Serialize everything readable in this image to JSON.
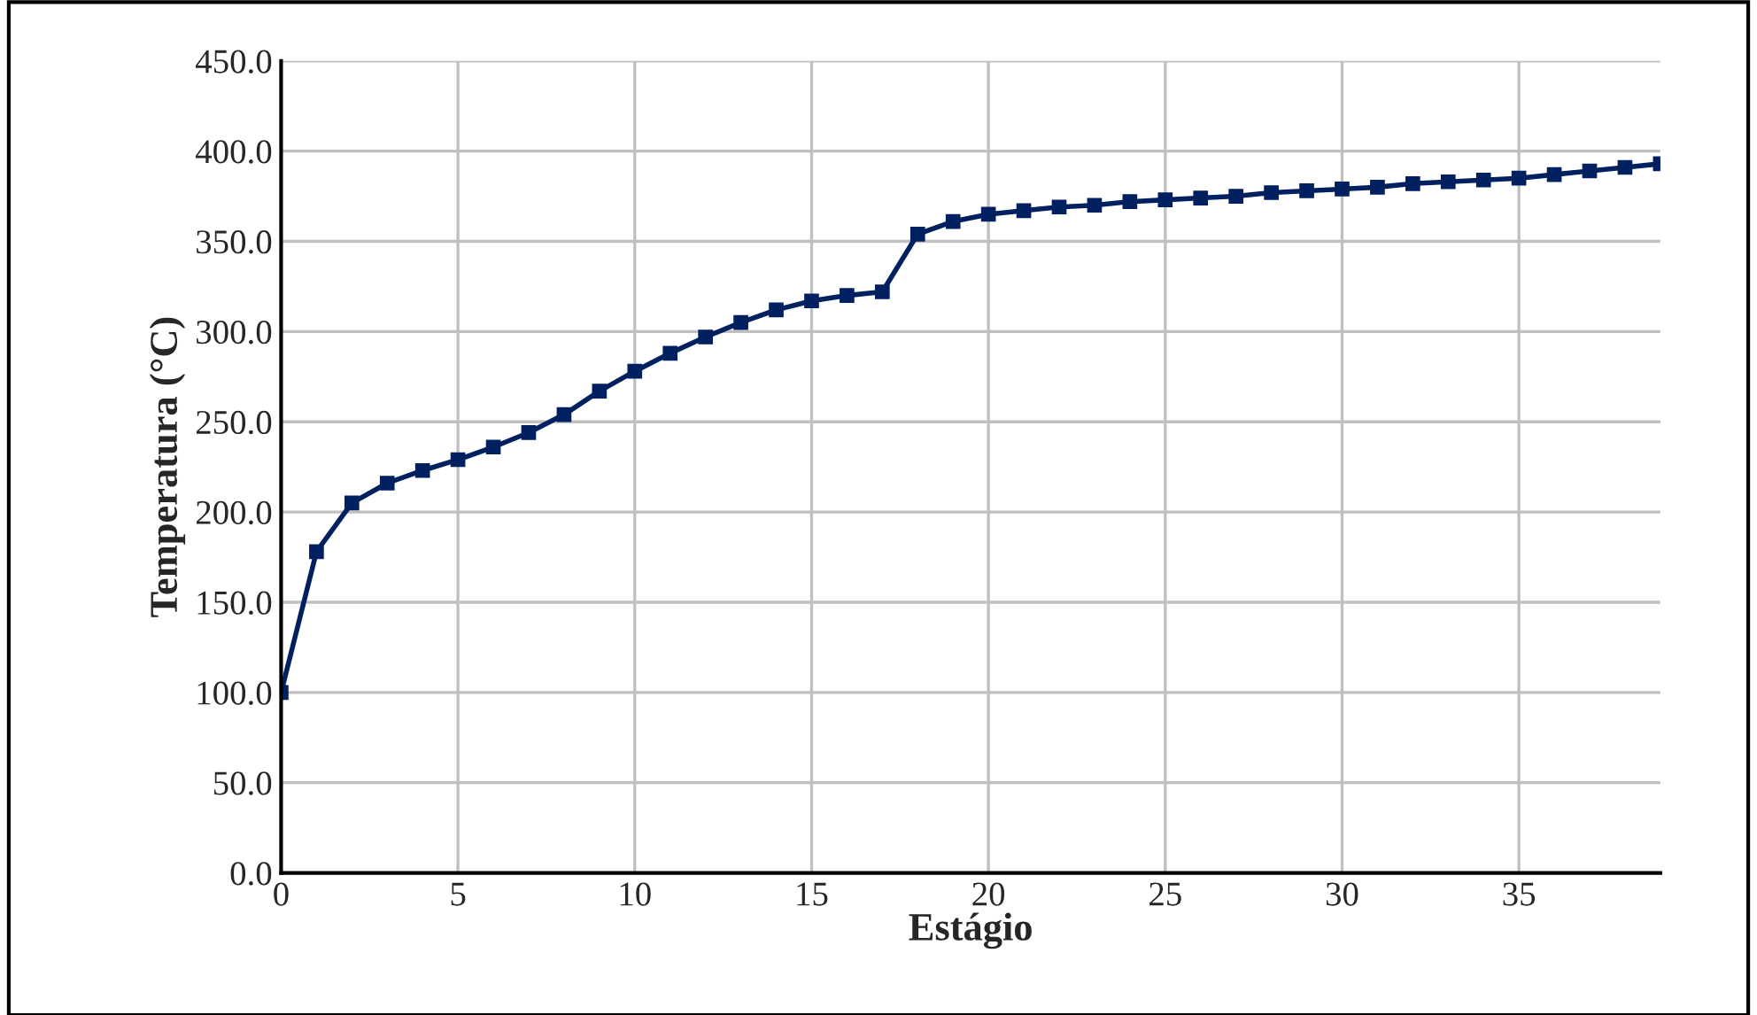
{
  "chart_data": {
    "type": "line",
    "xlabel": "Estágio",
    "ylabel": "Temperatura (°C)",
    "x": [
      0,
      1,
      2,
      3,
      4,
      5,
      6,
      7,
      8,
      9,
      10,
      11,
      12,
      13,
      14,
      15,
      16,
      17,
      18,
      19,
      20,
      21,
      22,
      23,
      24,
      25,
      26,
      27,
      28,
      29,
      30,
      31,
      32,
      33,
      34,
      35,
      36,
      37,
      38,
      39
    ],
    "series": [
      {
        "color": "#002060",
        "values": [
          100,
          178,
          205,
          216,
          223,
          229,
          236,
          244,
          254,
          267,
          278,
          288,
          297,
          305,
          312,
          317,
          320,
          322,
          354,
          361,
          365,
          367,
          369,
          370,
          372,
          373,
          374,
          375,
          377,
          378,
          379,
          380,
          382,
          383,
          384,
          385,
          387,
          389,
          391,
          393
        ]
      }
    ],
    "xlim": [
      0,
      39
    ],
    "xticks": [
      0,
      5,
      10,
      15,
      20,
      25,
      30,
      35
    ],
    "ylim": [
      0,
      450
    ],
    "yticks": [
      {
        "value": 0,
        "label": "0.0"
      },
      {
        "value": 50,
        "label": "50.0"
      },
      {
        "value": 100,
        "label": "100.0"
      },
      {
        "value": 150,
        "label": "150.0"
      },
      {
        "value": 200,
        "label": "200.0"
      },
      {
        "value": 250,
        "label": "250.0"
      },
      {
        "value": 300,
        "label": "300.0"
      },
      {
        "value": 350,
        "label": "350.0"
      },
      {
        "value": 400,
        "label": "400.0"
      },
      {
        "value": 450,
        "label": "450.0"
      }
    ],
    "grid": true,
    "marker": "square",
    "line_style": "solid"
  }
}
